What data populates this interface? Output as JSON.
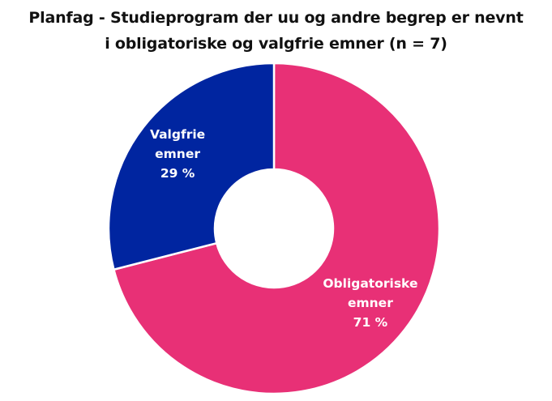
{
  "chart_data": {
    "type": "pie",
    "title_lines": [
      "Planfag - Studieprogram der uu og andre begrep er nevnt",
      "i obligatoriske og valgfrie emner (n = 7)"
    ],
    "slices": [
      {
        "name": "Obligatoriske emner",
        "label_lines": [
          "Obligatoriske",
          "emner"
        ],
        "value": 71,
        "value_label": "71 %",
        "color": "#E83076"
      },
      {
        "name": "Valgfrie emner",
        "label_lines": [
          "Valgfrie",
          "emner"
        ],
        "value": 29,
        "value_label": "29 %",
        "color": "#0025A0"
      }
    ],
    "donut": true,
    "legend": "none"
  }
}
